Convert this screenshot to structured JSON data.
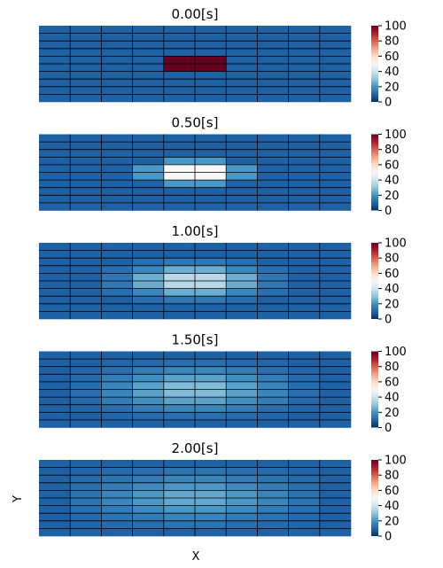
{
  "figure": {
    "xlabel": "X",
    "ylabel": "Y"
  },
  "colorbar": {
    "ticks": [
      0,
      20,
      40,
      60,
      80,
      100
    ],
    "colormap": "RdBu_r",
    "stops": [
      [
        0,
        "#053061"
      ],
      [
        0.1,
        "#2166ac"
      ],
      [
        0.2,
        "#4393c3"
      ],
      [
        0.3,
        "#92c5de"
      ],
      [
        0.4,
        "#d1e5f0"
      ],
      [
        0.5,
        "#f7f7f7"
      ],
      [
        0.6,
        "#fddbc7"
      ],
      [
        0.7,
        "#f4a582"
      ],
      [
        0.8,
        "#d6604d"
      ],
      [
        0.9,
        "#b2182b"
      ],
      [
        1.0,
        "#67001f"
      ]
    ]
  },
  "chart_data": [
    {
      "type": "heatmap",
      "title": "0.00[s]",
      "vmin": 0,
      "vmax": 100,
      "values": [
        [
          9,
          9,
          9,
          9,
          9,
          9,
          9,
          9,
          9,
          9
        ],
        [
          9,
          9,
          9,
          9,
          9,
          9,
          9,
          9,
          9,
          9
        ],
        [
          9,
          9,
          9,
          9,
          9,
          9,
          9,
          9,
          9,
          9
        ],
        [
          9,
          9,
          9,
          9,
          9,
          9,
          9,
          9,
          9,
          9
        ],
        [
          9,
          9,
          9,
          9,
          100,
          100,
          9,
          9,
          9,
          9
        ],
        [
          9,
          9,
          9,
          9,
          100,
          100,
          9,
          9,
          9,
          9
        ],
        [
          9,
          9,
          9,
          9,
          9,
          9,
          9,
          9,
          9,
          9
        ],
        [
          9,
          9,
          9,
          9,
          9,
          9,
          9,
          9,
          9,
          9
        ],
        [
          9,
          9,
          9,
          9,
          9,
          9,
          9,
          9,
          9,
          9
        ],
        [
          9,
          9,
          9,
          9,
          9,
          9,
          9,
          9,
          9,
          9
        ]
      ]
    },
    {
      "type": "heatmap",
      "title": "0.50[s]",
      "vmin": 0,
      "vmax": 100,
      "values": [
        [
          9,
          9,
          9,
          9,
          9,
          9,
          9,
          9,
          9,
          9
        ],
        [
          9,
          9,
          9,
          9,
          9,
          9,
          9,
          9,
          9,
          9
        ],
        [
          9,
          9,
          9,
          9,
          9,
          9,
          9,
          9,
          9,
          9
        ],
        [
          9,
          9,
          9,
          9,
          21,
          21,
          9,
          9,
          9,
          9
        ],
        [
          9,
          9,
          9,
          21,
          50,
          50,
          21,
          9,
          9,
          9
        ],
        [
          9,
          9,
          9,
          21,
          50,
          50,
          21,
          9,
          9,
          9
        ],
        [
          9,
          9,
          9,
          9,
          21,
          21,
          9,
          9,
          9,
          9
        ],
        [
          9,
          9,
          9,
          9,
          9,
          9,
          9,
          9,
          9,
          9
        ],
        [
          9,
          9,
          9,
          9,
          9,
          9,
          9,
          9,
          9,
          9
        ],
        [
          9,
          9,
          9,
          9,
          9,
          9,
          9,
          9,
          9,
          9
        ]
      ]
    },
    {
      "type": "heatmap",
      "title": "1.00[s]",
      "vmin": 0,
      "vmax": 100,
      "values": [
        [
          9,
          9,
          9,
          9,
          9,
          9,
          9,
          9,
          9,
          9
        ],
        [
          9,
          9,
          9,
          9,
          9,
          9,
          9,
          9,
          9,
          9
        ],
        [
          9,
          9,
          9,
          12,
          14,
          14,
          12,
          9,
          9,
          9
        ],
        [
          9,
          9,
          12,
          17,
          25,
          25,
          17,
          12,
          9,
          9
        ],
        [
          9,
          9,
          14,
          25,
          36,
          36,
          25,
          14,
          9,
          9
        ],
        [
          9,
          9,
          14,
          25,
          36,
          36,
          25,
          14,
          9,
          9
        ],
        [
          9,
          9,
          12,
          17,
          25,
          25,
          17,
          12,
          9,
          9
        ],
        [
          9,
          9,
          9,
          12,
          14,
          14,
          12,
          9,
          9,
          9
        ],
        [
          9,
          9,
          9,
          9,
          9,
          9,
          9,
          9,
          9,
          9
        ],
        [
          9,
          9,
          9,
          9,
          9,
          9,
          9,
          9,
          9,
          9
        ]
      ]
    },
    {
      "type": "heatmap",
      "title": "1.50[s]",
      "vmin": 0,
      "vmax": 100,
      "values": [
        [
          9,
          9,
          9,
          9,
          9,
          9,
          9,
          9,
          9,
          9
        ],
        [
          9,
          9,
          10,
          11,
          12,
          12,
          11,
          10,
          9,
          9
        ],
        [
          9,
          10,
          12,
          15,
          17,
          17,
          15,
          12,
          10,
          9
        ],
        [
          9,
          11,
          15,
          19,
          23,
          23,
          19,
          15,
          11,
          9
        ],
        [
          9,
          12,
          17,
          23,
          28,
          28,
          23,
          17,
          12,
          9
        ],
        [
          9,
          12,
          17,
          23,
          28,
          28,
          23,
          17,
          12,
          9
        ],
        [
          9,
          11,
          15,
          19,
          23,
          23,
          19,
          15,
          11,
          9
        ],
        [
          9,
          10,
          12,
          15,
          17,
          17,
          15,
          12,
          10,
          9
        ],
        [
          9,
          9,
          10,
          11,
          12,
          12,
          11,
          10,
          9,
          9
        ],
        [
          9,
          9,
          9,
          9,
          9,
          9,
          9,
          9,
          9,
          9
        ]
      ]
    },
    {
      "type": "heatmap",
      "title": "2.00[s]",
      "vmin": 0,
      "vmax": 100,
      "values": [
        [
          9,
          9,
          9,
          9,
          9,
          9,
          9,
          9,
          9,
          9
        ],
        [
          9,
          10,
          11,
          12,
          13,
          13,
          12,
          11,
          10,
          9
        ],
        [
          9,
          11,
          13,
          15,
          17,
          17,
          15,
          13,
          11,
          9
        ],
        [
          9,
          12,
          15,
          18,
          21,
          21,
          18,
          15,
          12,
          9
        ],
        [
          9,
          13,
          17,
          21,
          24,
          24,
          21,
          17,
          13,
          9
        ],
        [
          9,
          13,
          17,
          21,
          24,
          24,
          21,
          17,
          13,
          9
        ],
        [
          9,
          12,
          15,
          18,
          21,
          21,
          18,
          15,
          12,
          9
        ],
        [
          9,
          11,
          13,
          15,
          17,
          17,
          15,
          13,
          11,
          9
        ],
        [
          9,
          10,
          11,
          12,
          13,
          13,
          12,
          11,
          10,
          9
        ],
        [
          9,
          9,
          9,
          9,
          9,
          9,
          9,
          9,
          9,
          9
        ]
      ]
    }
  ]
}
